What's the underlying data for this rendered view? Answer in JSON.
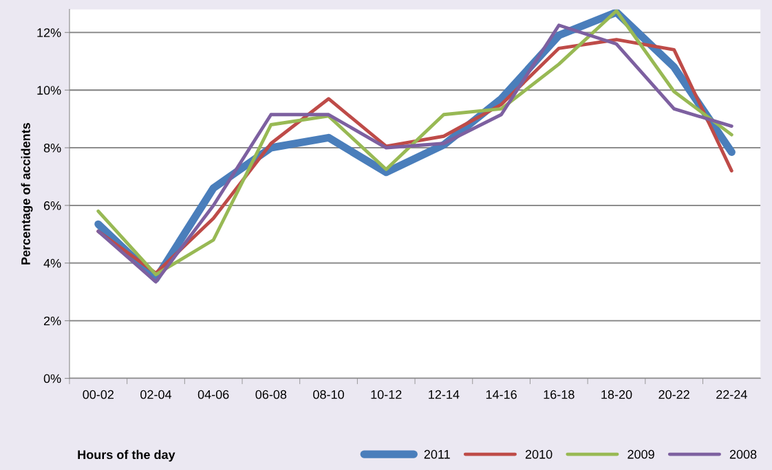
{
  "chart_data": {
    "type": "line",
    "xlabel": "Hours of the day",
    "ylabel": "Percentage of accidents",
    "categories": [
      "00-02",
      "02-04",
      "04-06",
      "06-08",
      "08-10",
      "10-12",
      "12-14",
      "14-16",
      "16-18",
      "18-20",
      "20-22",
      "22-24"
    ],
    "ylim": [
      0,
      12.8
    ],
    "yticks": [
      {
        "value": 0,
        "label": "0%"
      },
      {
        "value": 2,
        "label": "2%"
      },
      {
        "value": 4,
        "label": "4%"
      },
      {
        "value": 6,
        "label": "6%"
      },
      {
        "value": 8,
        "label": "8%"
      },
      {
        "value": 10,
        "label": "10%"
      },
      {
        "value": 12,
        "label": "12%"
      }
    ],
    "grid": "y",
    "legend": "bottom right",
    "marker": "none",
    "line_style": "solid",
    "series": [
      {
        "name": "2011",
        "color": "#4a7ebb",
        "values": [
          5.35,
          3.45,
          6.6,
          8.0,
          8.35,
          7.15,
          8.1,
          9.7,
          11.9,
          12.7,
          10.8,
          7.85
        ]
      },
      {
        "name": "2010",
        "color": "#be4b48",
        "values": [
          5.1,
          3.65,
          5.55,
          8.15,
          9.7,
          8.05,
          8.4,
          9.5,
          11.45,
          11.75,
          11.4,
          7.2
        ]
      },
      {
        "name": "2009",
        "color": "#98b954",
        "values": [
          5.8,
          3.6,
          4.8,
          8.8,
          9.1,
          7.25,
          9.15,
          9.35,
          10.9,
          12.75,
          9.95,
          8.45
        ]
      },
      {
        "name": "2008",
        "color": "#7d60a0",
        "values": [
          5.1,
          3.35,
          6.0,
          9.15,
          9.15,
          8.0,
          8.15,
          9.15,
          12.25,
          11.6,
          9.35,
          8.75
        ]
      }
    ]
  }
}
